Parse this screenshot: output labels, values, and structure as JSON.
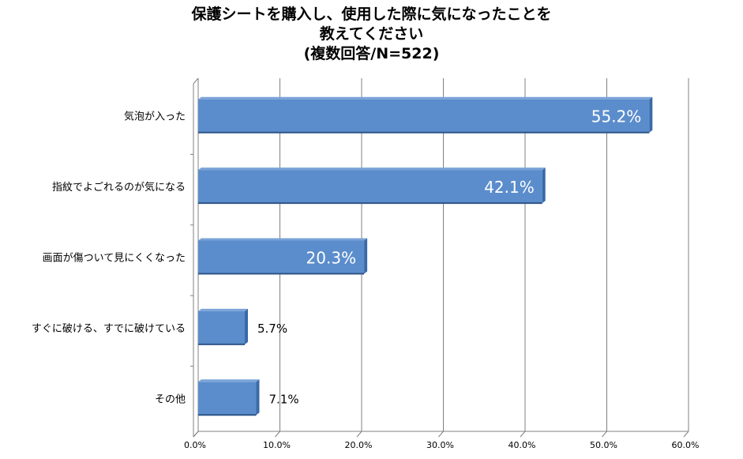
{
  "chart_data": {
    "type": "bar",
    "orientation": "horizontal",
    "title_lines": [
      "保護シートを購入し、使用した際に気になったことを",
      "教えてください",
      "(複数回答/N=522)"
    ],
    "categories": [
      "気泡が入った",
      "指紋でよごれるのが気になる",
      "画面が傷ついて見にくくなった",
      "すぐに破ける、すでに破けている",
      "その他"
    ],
    "values": [
      55.2,
      42.1,
      20.3,
      5.7,
      7.1
    ],
    "data_labels": [
      "55.2%",
      "42.1%",
      "20.3%",
      "5.7%",
      "7.1%"
    ],
    "xlim": [
      0,
      60
    ],
    "x_ticks": [
      0,
      10,
      20,
      30,
      40,
      50,
      60
    ],
    "x_tick_labels": [
      "0.0%",
      "10.0%",
      "20.0%",
      "30.0%",
      "40.0%",
      "50.0%",
      "60.0%"
    ],
    "grid": true,
    "bar_color": "#5b8dcc",
    "bar_top_color": "#7aa3d8",
    "bar_side_color": "#3a6aa8"
  }
}
